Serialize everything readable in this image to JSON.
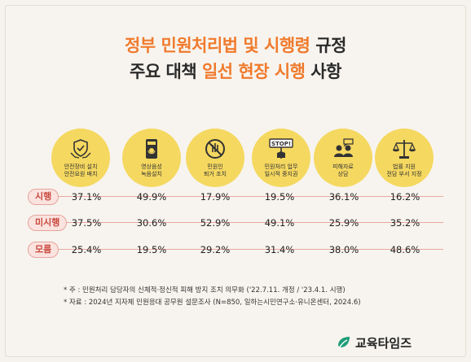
{
  "title": {
    "line1_a": "정부 민원처리법 및 시행령",
    "line1_b": " 규정",
    "line2_a": "주요 대책 ",
    "line2_b": "일선 현장 시행",
    "line2_c": " 사항"
  },
  "columns": [
    {
      "label": "안전장비 설치\n안전요원 배치",
      "icon": "shield-hands-icon"
    },
    {
      "label": "영상음성\n녹음설치",
      "icon": "recording-device-icon"
    },
    {
      "label": "민원인\n퇴거 조치",
      "icon": "stop-hand-icon"
    },
    {
      "label": "민원처리 업무\n일시적 중지권",
      "icon": "stop-sign-icon"
    },
    {
      "label": "피해자료\n상담",
      "icon": "counseling-icon"
    },
    {
      "label": "법률 지원\n전담 부서 지정",
      "icon": "legal-scale-icon"
    }
  ],
  "rows": [
    {
      "label": "시행",
      "values": [
        "37.1%",
        "49.9%",
        "17.9%",
        "19.5%",
        "36.1%",
        "16.2%"
      ]
    },
    {
      "label": "미시행",
      "values": [
        "37.5%",
        "30.6%",
        "52.9%",
        "49.1%",
        "25.9%",
        "35.2%"
      ]
    },
    {
      "label": "모름",
      "values": [
        "25.4%",
        "19.5%",
        "29.2%",
        "31.4%",
        "38.0%",
        "48.6%"
      ]
    }
  ],
  "chart_data": {
    "type": "table",
    "categories": [
      "안전장비 설치 안전요원 배치",
      "영상음성 녹음설치",
      "민원인 퇴거 조치",
      "민원처리 업무 일시적 중지권",
      "피해자료 상담",
      "법률 지원 전담 부서 지정"
    ],
    "series": [
      {
        "name": "시행",
        "values": [
          37.1,
          49.9,
          17.9,
          19.5,
          36.1,
          16.2
        ]
      },
      {
        "name": "미시행",
        "values": [
          37.5,
          30.6,
          52.9,
          49.1,
          25.9,
          35.2
        ]
      },
      {
        "name": "모름",
        "values": [
          25.4,
          19.5,
          29.2,
          31.4,
          38.0,
          48.6
        ]
      }
    ]
  },
  "notes": {
    "note1": "* 주   : 민원처리 담당자의 신체적·정신적 피해 방지 조치 의무화 ('22.7.11. 개정 / '23.4.1. 시행)",
    "note2": "* 자료 : 2024년 지자체 민원응대 공무원 설문조사 (N=850, 일하는시민연구소·유니온센터, 2024.6)"
  },
  "logo": {
    "text": "교육타임즈"
  },
  "colors": {
    "accent": "#f07a2c",
    "circle": "#f5d860",
    "tag": "#c8473c",
    "line": "#e9a7a0"
  }
}
